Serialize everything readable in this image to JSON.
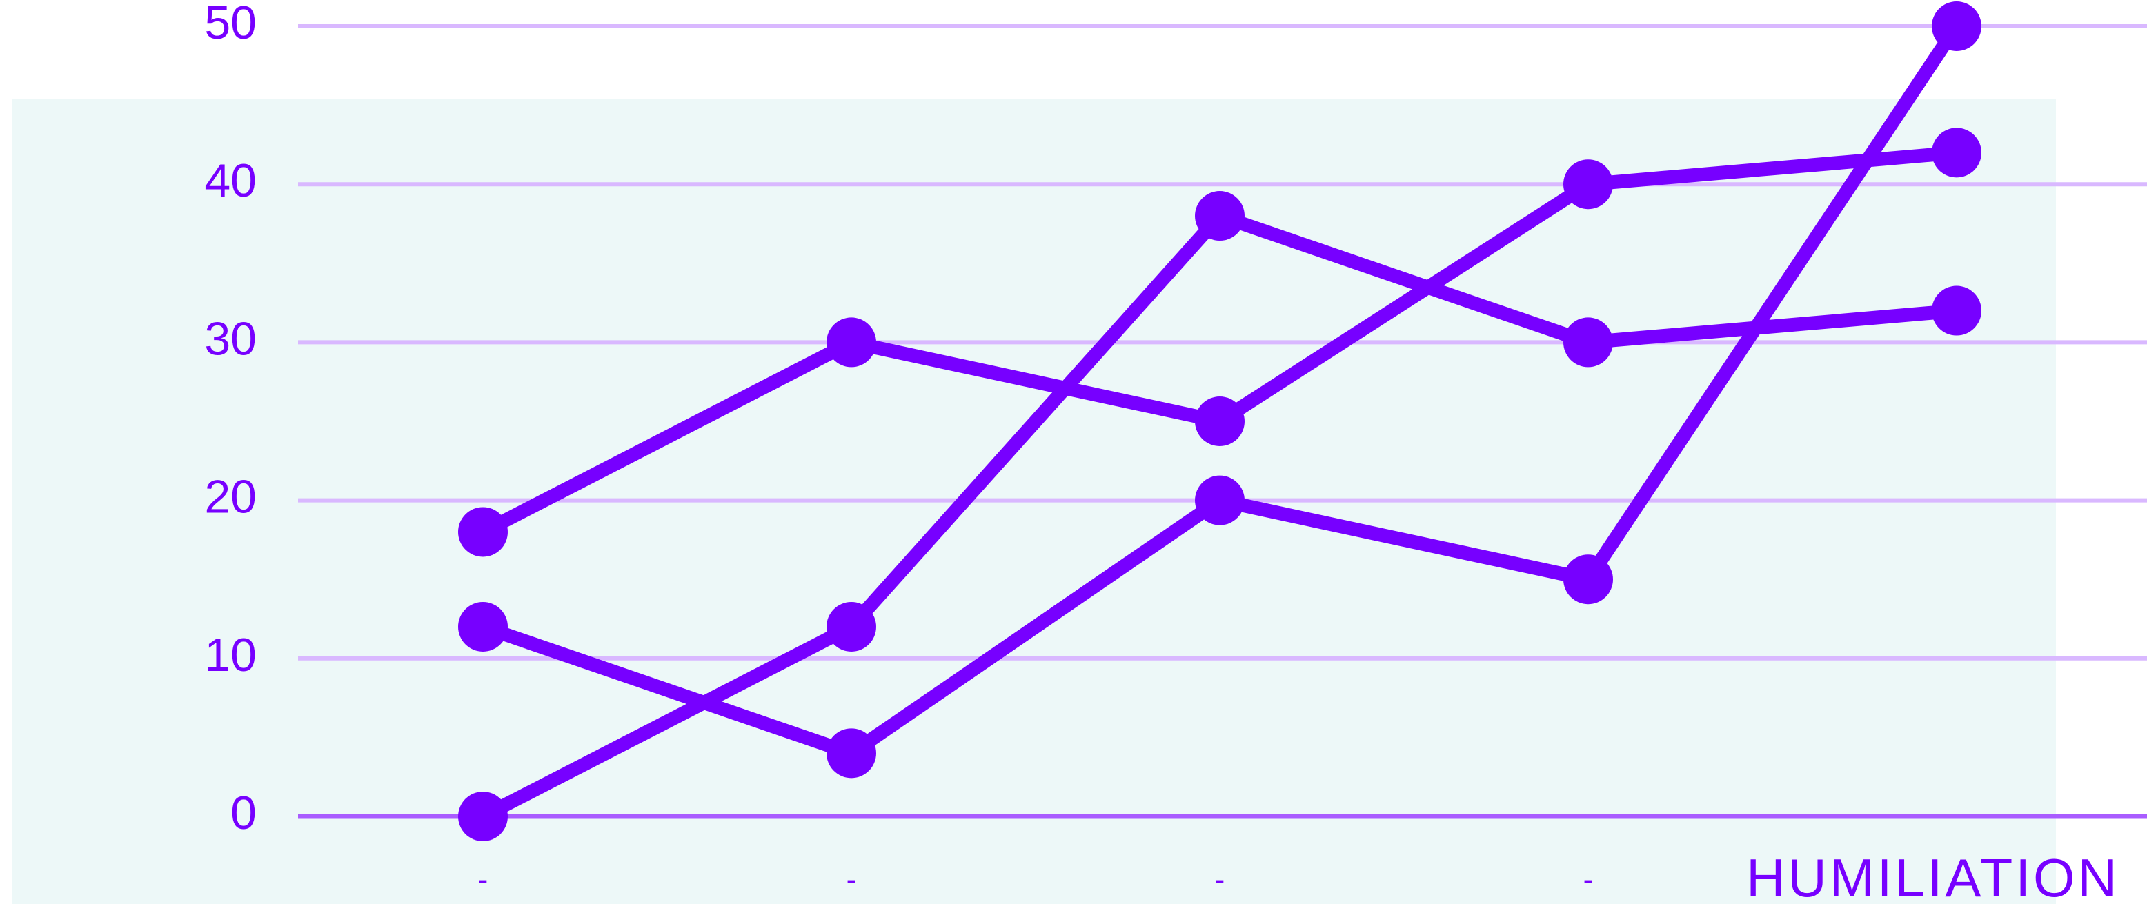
{
  "chart_data": {
    "type": "line",
    "title": "",
    "xlabel": "HUMILIATION",
    "ylabel": "",
    "categories": [
      "-",
      "-",
      "-",
      "-",
      ""
    ],
    "ylim": [
      0,
      50
    ],
    "yticks": [
      "0",
      "10",
      "20",
      "30",
      "40",
      "50"
    ],
    "grid": true,
    "series": [
      {
        "values": [
          18,
          30,
          25,
          40,
          42
        ]
      },
      {
        "values": [
          12,
          4,
          20,
          15,
          50
        ]
      },
      {
        "values": [
          0,
          12,
          38,
          30,
          32
        ]
      }
    ]
  },
  "colors": {
    "line": "#7700ff",
    "grid": "#d9b8ff",
    "baseline": "#a95cff",
    "background_panel": "#edf8f8"
  }
}
